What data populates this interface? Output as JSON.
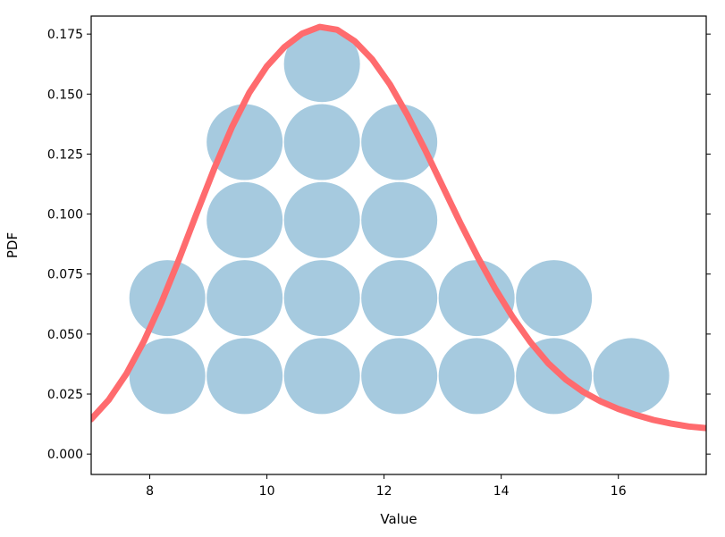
{
  "chart_data": {
    "type": "scatter",
    "xlabel": "Value",
    "ylabel": "PDF",
    "xlim": [
      7.0,
      17.5
    ],
    "ylim": [
      -0.0085,
      0.1825
    ],
    "xticks": [
      8,
      10,
      12,
      14,
      16
    ],
    "xtick_labels": [
      "8",
      "10",
      "12",
      "14",
      "16"
    ],
    "yticks": [
      0.0,
      0.025,
      0.05,
      0.075,
      0.1,
      0.125,
      0.15,
      0.175
    ],
    "ytick_labels": [
      "0.000",
      "0.025",
      "0.050",
      "0.075",
      "0.100",
      "0.125",
      "0.150",
      "0.175"
    ],
    "grid": false,
    "legend": false,
    "dot_color": "#a6cadf",
    "curve_color": "#ff6b6e",
    "dots": [
      {
        "x": 8.3,
        "y": 0.0325
      },
      {
        "x": 9.62,
        "y": 0.0325
      },
      {
        "x": 10.94,
        "y": 0.0325
      },
      {
        "x": 12.26,
        "y": 0.0325
      },
      {
        "x": 13.58,
        "y": 0.0325
      },
      {
        "x": 14.9,
        "y": 0.0325
      },
      {
        "x": 16.22,
        "y": 0.0325
      },
      {
        "x": 8.3,
        "y": 0.065
      },
      {
        "x": 9.62,
        "y": 0.065
      },
      {
        "x": 10.94,
        "y": 0.065
      },
      {
        "x": 12.26,
        "y": 0.065
      },
      {
        "x": 13.58,
        "y": 0.065
      },
      {
        "x": 14.9,
        "y": 0.065
      },
      {
        "x": 9.62,
        "y": 0.0975
      },
      {
        "x": 10.94,
        "y": 0.0975
      },
      {
        "x": 12.26,
        "y": 0.0975
      },
      {
        "x": 9.62,
        "y": 0.13
      },
      {
        "x": 10.94,
        "y": 0.13
      },
      {
        "x": 12.26,
        "y": 0.13
      },
      {
        "x": 10.94,
        "y": 0.1625
      }
    ],
    "curve": {
      "x": [
        7.0,
        7.3,
        7.6,
        7.9,
        8.2,
        8.5,
        8.8,
        9.1,
        9.4,
        9.7,
        10.0,
        10.3,
        10.6,
        10.9,
        11.2,
        11.5,
        11.8,
        12.1,
        12.4,
        12.7,
        13.0,
        13.3,
        13.6,
        13.9,
        14.2,
        14.5,
        14.8,
        15.1,
        15.4,
        15.7,
        16.0,
        16.3,
        16.6,
        16.9,
        17.2,
        17.5
      ],
      "y": [
        0.0145,
        0.0226,
        0.0334,
        0.047,
        0.0631,
        0.0812,
        0.1002,
        0.1189,
        0.1361,
        0.1506,
        0.1616,
        0.1696,
        0.1752,
        0.178,
        0.1768,
        0.172,
        0.1644,
        0.154,
        0.1412,
        0.1268,
        0.1116,
        0.0964,
        0.082,
        0.0688,
        0.0569,
        0.0466,
        0.0379,
        0.0311,
        0.0259,
        0.0219,
        0.0188,
        0.0163,
        0.0142,
        0.0127,
        0.0115,
        0.0108
      ]
    }
  }
}
